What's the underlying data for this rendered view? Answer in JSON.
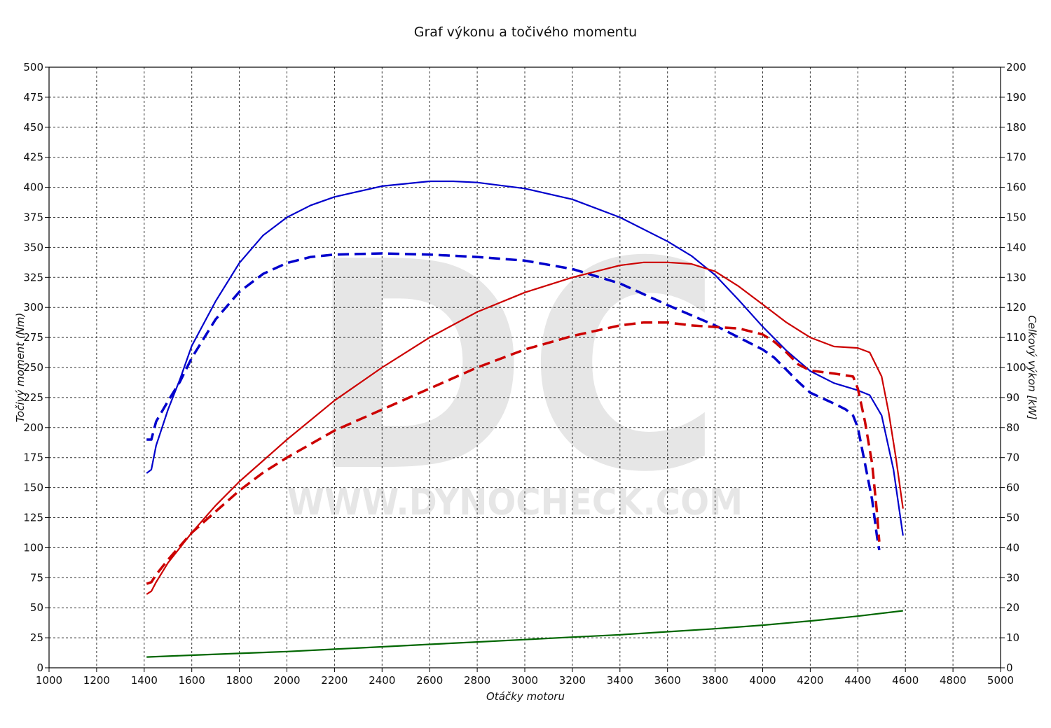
{
  "chart_data": {
    "type": "line",
    "title": "Graf výkonu a točivého momentu",
    "xlabel": "Otáčky motoru",
    "ylabel_left": "Točivý moment (Nm)",
    "ylabel_right": "Celkový výkon [kW]",
    "xlim": [
      1000,
      5000
    ],
    "ylim_left": [
      0,
      500
    ],
    "ylim_right": [
      0,
      200
    ],
    "x_ticks": [
      1000,
      1200,
      1400,
      1600,
      1800,
      2000,
      2200,
      2400,
      2600,
      2800,
      3000,
      3200,
      3400,
      3600,
      3800,
      4000,
      4200,
      4400,
      4600,
      4800,
      5000
    ],
    "y_ticks_left": [
      0,
      25,
      50,
      75,
      100,
      125,
      150,
      175,
      200,
      225,
      250,
      275,
      300,
      325,
      350,
      375,
      400,
      425,
      450,
      475,
      500
    ],
    "y_ticks_right": [
      0,
      10,
      20,
      30,
      40,
      50,
      60,
      70,
      80,
      90,
      100,
      110,
      120,
      130,
      140,
      150,
      160,
      170,
      180,
      190,
      200
    ],
    "grid": true,
    "watermark": {
      "logo": "DC",
      "text": "WWW.DYNOCHECK.COM"
    },
    "series": [
      {
        "axis": "left",
        "color": "#0000cc",
        "dash": false,
        "x": [
          1410,
          1430,
          1450,
          1500,
          1550,
          1600,
          1700,
          1800,
          1900,
          2000,
          2100,
          2200,
          2400,
          2600,
          2700,
          2800,
          3000,
          3200,
          3400,
          3600,
          3700,
          3800,
          3900,
          4000,
          4100,
          4200,
          4300,
          4400,
          4450,
          4500,
          4550,
          4590
        ],
        "y": [
          162,
          165,
          185,
          215,
          240,
          268,
          305,
          337,
          360,
          375,
          385,
          392,
          401,
          405,
          405,
          404,
          399,
          390,
          375,
          355,
          343,
          327,
          306,
          284,
          264,
          247,
          237,
          231,
          227,
          210,
          165,
          110
        ]
      },
      {
        "axis": "left",
        "color": "#0000cc",
        "dash": true,
        "x": [
          1410,
          1430,
          1450,
          1500,
          1550,
          1600,
          1700,
          1800,
          1900,
          2000,
          2100,
          2200,
          2400,
          2600,
          2800,
          3000,
          3200,
          3400,
          3600,
          3800,
          4000,
          4050,
          4100,
          4150,
          4200,
          4300,
          4350,
          4380,
          4400,
          4420,
          4440,
          4460,
          4480,
          4490
        ],
        "y": [
          190,
          190,
          205,
          222,
          238,
          258,
          290,
          313,
          328,
          337,
          342,
          344,
          345,
          344,
          342,
          339,
          332,
          320,
          302,
          285,
          265,
          258,
          248,
          238,
          229,
          220,
          215,
          210,
          200,
          180,
          160,
          140,
          110,
          98
        ]
      },
      {
        "axis": "right",
        "color": "#cc0000",
        "dash": false,
        "x": [
          1410,
          1430,
          1450,
          1500,
          1600,
          1700,
          1800,
          1900,
          2000,
          2200,
          2400,
          2600,
          2800,
          3000,
          3200,
          3400,
          3500,
          3600,
          3700,
          3800,
          3900,
          4000,
          4100,
          4200,
          4300,
          4400,
          4450,
          4500,
          4530,
          4560,
          4590
        ],
        "y": [
          24.5,
          25.5,
          28.5,
          35,
          45,
          54,
          62,
          69,
          76,
          89,
          100,
          110,
          118.5,
          125,
          130,
          134,
          135,
          135,
          134.5,
          132,
          127,
          121,
          115,
          110,
          107,
          106.5,
          105,
          97,
          85,
          70,
          53
        ]
      },
      {
        "axis": "right",
        "color": "#cc0000",
        "dash": true,
        "x": [
          1410,
          1430,
          1450,
          1500,
          1600,
          1700,
          1800,
          1900,
          2000,
          2200,
          2400,
          2600,
          2800,
          3000,
          3200,
          3400,
          3500,
          3600,
          3700,
          3800,
          3900,
          4000,
          4050,
          4100,
          4150,
          4200,
          4300,
          4380,
          4400,
          4430,
          4460,
          4480,
          4490
        ],
        "y": [
          28,
          28.5,
          31,
          36,
          45,
          52,
          59,
          65,
          70,
          79,
          86,
          93,
          100,
          106,
          110.5,
          114,
          115,
          115,
          114,
          113.5,
          113,
          111,
          108.5,
          105,
          101,
          99,
          98,
          97,
          93,
          82,
          68,
          52,
          42
        ]
      },
      {
        "axis": "left",
        "color": "#006600",
        "dash": false,
        "x": [
          1410,
          1600,
          1800,
          2000,
          2200,
          2400,
          2600,
          2800,
          3000,
          3200,
          3400,
          3600,
          3800,
          4000,
          4200,
          4400,
          4590
        ],
        "y": [
          9,
          10.5,
          12,
          13.5,
          15.5,
          17.5,
          19.5,
          21.5,
          23.5,
          25.5,
          27.5,
          30,
          32.5,
          35.5,
          39,
          43,
          47.5
        ]
      }
    ]
  }
}
